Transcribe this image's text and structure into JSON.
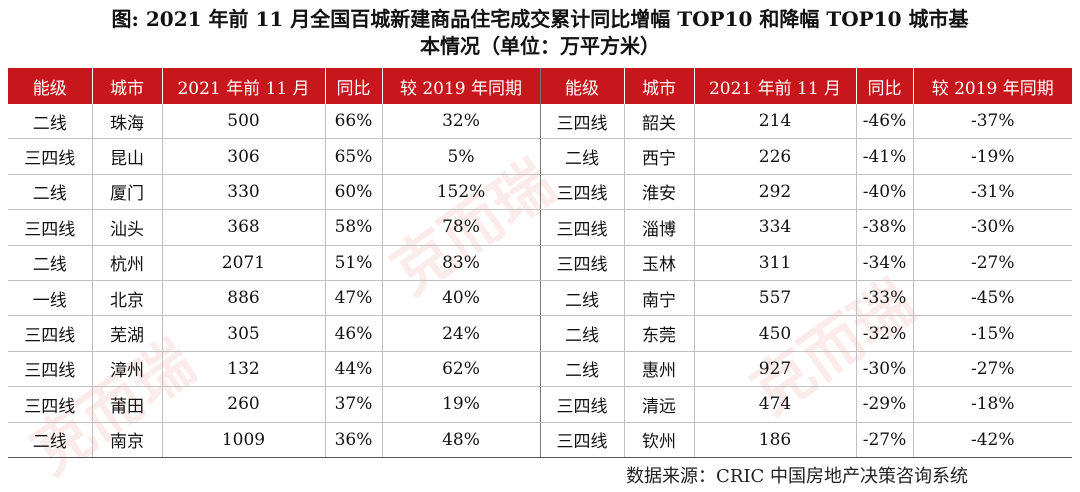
{
  "title_line1": "图: 2021 年前 11 月全国百城新建商品住宅成交累计同比增幅 TOP10 和降幅 TOP10 城市基",
  "title_line2": "本情况（单位：万平方米）",
  "headers": [
    "能级",
    "城市",
    "2021 年前 11 月",
    "同比",
    "较 2019 年同期",
    "能级",
    "城市",
    "2021 年前 11 月",
    "同比",
    "较 2019 年同期"
  ],
  "rows": [
    [
      "二线",
      "珠海",
      "500",
      "66%",
      "32%",
      "三四线",
      "韶关",
      "214",
      "-46%",
      "-37%"
    ],
    [
      "三四线",
      "昆山",
      "306",
      "65%",
      "5%",
      "二线",
      "西宁",
      "226",
      "-41%",
      "-19%"
    ],
    [
      "二线",
      "厦门",
      "330",
      "60%",
      "152%",
      "三四线",
      "淮安",
      "292",
      "-40%",
      "-31%"
    ],
    [
      "三四线",
      "汕头",
      "368",
      "58%",
      "78%",
      "三四线",
      "淄博",
      "334",
      "-38%",
      "-30%"
    ],
    [
      "二线",
      "杭州",
      "2071",
      "51%",
      "83%",
      "三四线",
      "玉林",
      "311",
      "-34%",
      "-27%"
    ],
    [
      "一线",
      "北京",
      "886",
      "47%",
      "40%",
      "二线",
      "南宁",
      "557",
      "-33%",
      "-45%"
    ],
    [
      "三四线",
      "芜湖",
      "305",
      "46%",
      "24%",
      "二线",
      "东莞",
      "450",
      "-32%",
      "-15%"
    ],
    [
      "三四线",
      "漳州",
      "132",
      "44%",
      "62%",
      "二线",
      "惠州",
      "927",
      "-30%",
      "-27%"
    ],
    [
      "三四线",
      "莆田",
      "260",
      "37%",
      "19%",
      "三四线",
      "清远",
      "474",
      "-29%",
      "-18%"
    ],
    [
      "二线",
      "南京",
      "1009",
      "36%",
      "48%",
      "三四线",
      "钦州",
      "186",
      "-27%",
      "-42%"
    ]
  ],
  "source": "数据来源：CRIC 中国房地产决策咨询系统",
  "colors": {
    "header_bg": "#c8161d",
    "header_text": "#ffffff"
  }
}
